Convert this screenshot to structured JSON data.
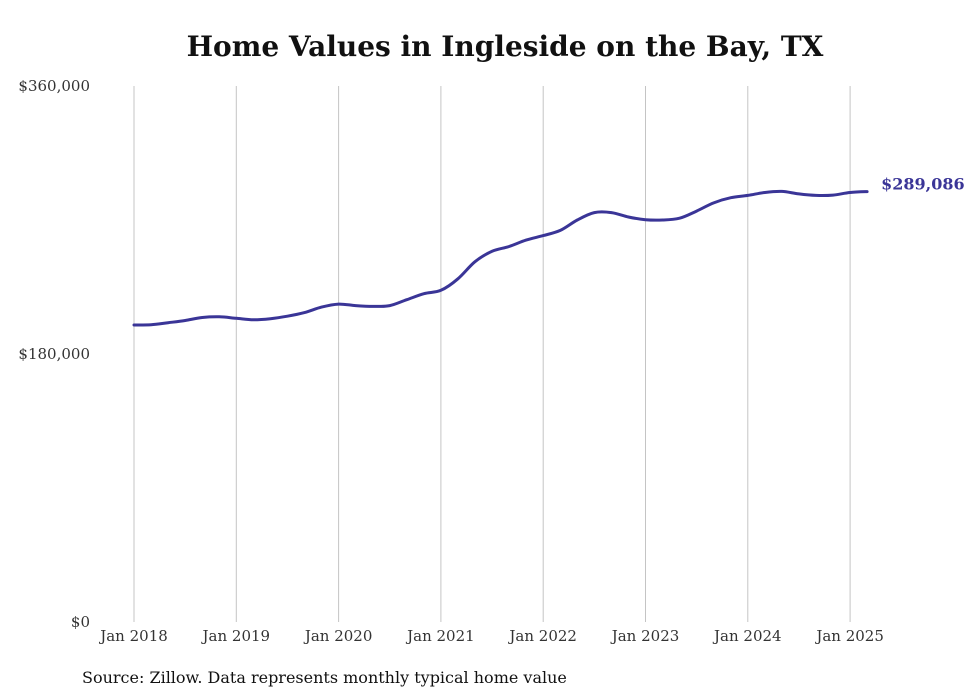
{
  "chart_data": {
    "type": "line",
    "title": "Home Values in Ingleside on the Bay, TX",
    "xlabel": "",
    "ylabel": "",
    "ylim": [
      0,
      360000
    ],
    "y_ticks": [
      "$0",
      "$180,000",
      "$360,000"
    ],
    "y_tick_values": [
      0,
      180000,
      360000
    ],
    "x_ticks": [
      "Jan 2018",
      "Jan 2019",
      "Jan 2020",
      "Jan 2021",
      "Jan 2022",
      "Jan 2023",
      "Jan 2024",
      "Jan 2025"
    ],
    "grid": "vertical",
    "line_color": "#3a3597",
    "end_label": "$289,086",
    "series": [
      {
        "points": [
          [
            "2018-01",
            199500
          ],
          [
            "2018-03",
            199700
          ],
          [
            "2018-05",
            201000
          ],
          [
            "2018-07",
            202500
          ],
          [
            "2018-09",
            204500
          ],
          [
            "2018-11",
            205000
          ],
          [
            "2019-01",
            204000
          ],
          [
            "2019-03",
            203000
          ],
          [
            "2019-05",
            203700
          ],
          [
            "2019-07",
            205400
          ],
          [
            "2019-09",
            207800
          ],
          [
            "2019-11",
            211500
          ],
          [
            "2020-01",
            213500
          ],
          [
            "2020-03",
            212500
          ],
          [
            "2020-05",
            212000
          ],
          [
            "2020-07",
            212500
          ],
          [
            "2020-09",
            216500
          ],
          [
            "2020-11",
            220500
          ],
          [
            "2021-01",
            222800
          ],
          [
            "2021-03",
            230500
          ],
          [
            "2021-05",
            242000
          ],
          [
            "2021-07",
            249000
          ],
          [
            "2021-09",
            252200
          ],
          [
            "2021-11",
            256500
          ],
          [
            "2022-01",
            259500
          ],
          [
            "2022-03",
            263000
          ],
          [
            "2022-05",
            270000
          ],
          [
            "2022-07",
            275000
          ],
          [
            "2022-09",
            275000
          ],
          [
            "2022-11",
            272000
          ],
          [
            "2023-01",
            270200
          ],
          [
            "2023-03",
            270000
          ],
          [
            "2023-05",
            271200
          ],
          [
            "2023-07",
            276000
          ],
          [
            "2023-09",
            281500
          ],
          [
            "2023-11",
            285000
          ],
          [
            "2024-01",
            286500
          ],
          [
            "2024-03",
            288500
          ],
          [
            "2024-05",
            289200
          ],
          [
            "2024-07",
            287500
          ],
          [
            "2024-09",
            286500
          ],
          [
            "2024-11",
            286700
          ],
          [
            "2025-01",
            288500
          ],
          [
            "2025-03",
            289086
          ]
        ]
      }
    ]
  },
  "source": "Source: Zillow. Data represents monthly typical home value"
}
